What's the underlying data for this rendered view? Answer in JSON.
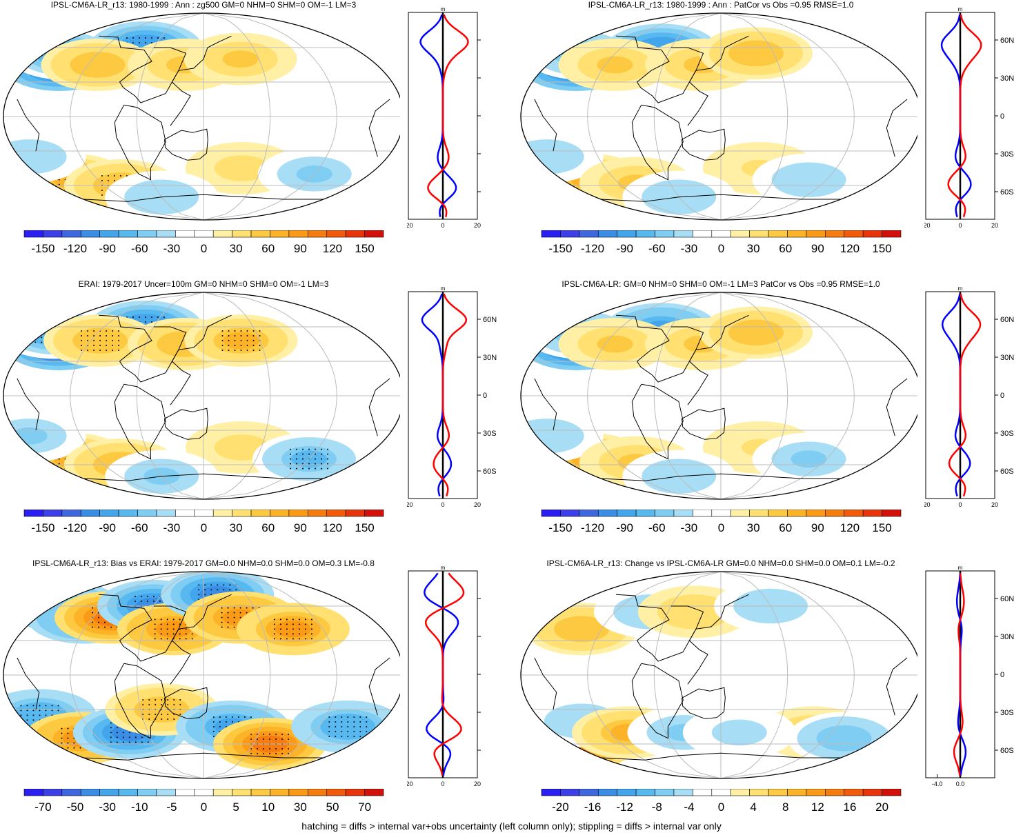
{
  "footer": "hatching = diffs > internal var+obs uncertainty (left column only); stippling = diffs > internal var only",
  "colors": {
    "colormap": [
      "#2b1ef5",
      "#3d3fe8",
      "#3f68e0",
      "#3a8ee6",
      "#43a6ec",
      "#58b9f0",
      "#7fcdf3",
      "#a7def6",
      "#ffffff",
      "#ffffff",
      "#fff0a6",
      "#ffe070",
      "#fdc940",
      "#fdb327",
      "#fb9a17",
      "#f77c10",
      "#f25a0c",
      "#e8340a",
      "#d4100a"
    ],
    "profile_model": "#ff0000",
    "profile_obs": "#0000ff",
    "profile_center": "#000000"
  },
  "chart_data": [
    {
      "type": "heatmap",
      "title": "IPSL-CM6A-LR_r13: 1980-1999 : Ann : zg500 GM=0 NHM=0 SHM=0 OM=-1 LM=3",
      "colorbar_ticks": [
        "-150",
        "-120",
        "-90",
        "-60",
        "-30",
        "0",
        "30",
        "60",
        "90",
        "120",
        "150"
      ],
      "profile": {
        "units": "m",
        "xticks": [
          "-20",
          "0",
          "20"
        ],
        "yticks": [
          "60N",
          "30N",
          "0",
          "30S",
          "60S"
        ],
        "show_yticks": false,
        "xlim": [
          -20,
          20
        ]
      },
      "stipple": true,
      "anomalies": [
        {
          "lon": -150,
          "lat": 45,
          "amp": -130
        },
        {
          "lon": -160,
          "lat": 55,
          "amp": -70
        },
        {
          "lon": -70,
          "lat": 60,
          "amp": -90
        },
        {
          "lon": -110,
          "lat": 45,
          "amp": 50
        },
        {
          "lon": -20,
          "lat": 45,
          "amp": 45
        },
        {
          "lon": 40,
          "lat": 50,
          "amp": 45
        },
        {
          "lon": -150,
          "lat": -55,
          "amp": 65
        },
        {
          "lon": -170,
          "lat": -35,
          "amp": -40
        },
        {
          "lon": -100,
          "lat": -60,
          "amp": 55
        },
        {
          "lon": 40,
          "lat": -45,
          "amp": 30
        },
        {
          "lon": 120,
          "lat": -50,
          "amp": -45
        },
        {
          "lon": -60,
          "lat": -70,
          "amp": -40
        }
      ]
    },
    {
      "type": "heatmap",
      "title": "IPSL-CM6A-LR_r13: 1980-1999 : Ann : PatCor vs Obs =0.95 RMSE=1.0",
      "colorbar_ticks": [
        "-150",
        "-120",
        "-90",
        "-60",
        "-30",
        "0",
        "30",
        "60",
        "90",
        "120",
        "150"
      ],
      "profile": {
        "units": "m",
        "xticks": [
          "-20",
          "0",
          "20"
        ],
        "yticks": [
          "60N",
          "30N",
          "0",
          "30S",
          "60S"
        ],
        "show_yticks": true,
        "xlim": [
          -20,
          20
        ]
      },
      "stipple": false,
      "anomalies": [
        {
          "lon": -150,
          "lat": 45,
          "amp": -125
        },
        {
          "lon": -160,
          "lat": 55,
          "amp": -60
        },
        {
          "lon": -70,
          "lat": 58,
          "amp": -90
        },
        {
          "lon": -110,
          "lat": 45,
          "amp": 45
        },
        {
          "lon": -20,
          "lat": 45,
          "amp": 45
        },
        {
          "lon": 40,
          "lat": 55,
          "amp": 50
        },
        {
          "lon": -150,
          "lat": -55,
          "amp": 60
        },
        {
          "lon": -170,
          "lat": -35,
          "amp": -40
        },
        {
          "lon": -100,
          "lat": -58,
          "amp": 45
        },
        {
          "lon": 40,
          "lat": -45,
          "amp": 25
        },
        {
          "lon": 100,
          "lat": -55,
          "amp": -40
        },
        {
          "lon": -60,
          "lat": -70,
          "amp": -40
        }
      ]
    },
    {
      "type": "heatmap",
      "title": "ERAI: 1979-2017 Uncer=100m GM=0 NHM=0 SHM=0 OM=-1 LM=3",
      "colorbar_ticks": [
        "-150",
        "-120",
        "-90",
        "-60",
        "-30",
        "0",
        "30",
        "60",
        "90",
        "120",
        "150"
      ],
      "profile": {
        "units": "m",
        "xticks": [
          "-20",
          "0",
          "20"
        ],
        "yticks": [
          "60N",
          "30N",
          "0",
          "30S",
          "60S"
        ],
        "show_yticks": true,
        "xlim": [
          -20,
          20
        ]
      },
      "stipple": true,
      "anomalies": [
        {
          "lon": -150,
          "lat": 45,
          "amp": -140
        },
        {
          "lon": -170,
          "lat": 55,
          "amp": -70
        },
        {
          "lon": -70,
          "lat": 60,
          "amp": -90
        },
        {
          "lon": -110,
          "lat": 48,
          "amp": 55
        },
        {
          "lon": -20,
          "lat": 45,
          "amp": 50
        },
        {
          "lon": 40,
          "lat": 48,
          "amp": 60
        },
        {
          "lon": -150,
          "lat": -55,
          "amp": 65
        },
        {
          "lon": -170,
          "lat": -35,
          "amp": -45
        },
        {
          "lon": -100,
          "lat": -60,
          "amp": 50
        },
        {
          "lon": 40,
          "lat": -45,
          "amp": 30
        },
        {
          "lon": 120,
          "lat": -55,
          "amp": -60
        },
        {
          "lon": -60,
          "lat": -70,
          "amp": -45
        }
      ]
    },
    {
      "type": "heatmap",
      "title": "IPSL-CM6A-LR: GM=0 NHM=0 SHM=0 OM=-1 LM=3 PatCor vs Obs =0.95 RMSE=1.0",
      "colorbar_ticks": [
        "-150",
        "-120",
        "-90",
        "-60",
        "-30",
        "0",
        "30",
        "60",
        "90",
        "120",
        "150"
      ],
      "profile": {
        "units": "m",
        "xticks": [
          "-20",
          "0",
          "20"
        ],
        "yticks": [
          "60N",
          "30N",
          "0",
          "30S",
          "60S"
        ],
        "show_yticks": true,
        "xlim": [
          -20,
          20
        ]
      },
      "stipple": false,
      "anomalies": [
        {
          "lon": -150,
          "lat": 45,
          "amp": -125
        },
        {
          "lon": -160,
          "lat": 55,
          "amp": -60
        },
        {
          "lon": -70,
          "lat": 58,
          "amp": -85
        },
        {
          "lon": -110,
          "lat": 45,
          "amp": 45
        },
        {
          "lon": -20,
          "lat": 45,
          "amp": 45
        },
        {
          "lon": 40,
          "lat": 55,
          "amp": 50
        },
        {
          "lon": -150,
          "lat": -55,
          "amp": 60
        },
        {
          "lon": -170,
          "lat": -35,
          "amp": -40
        },
        {
          "lon": -100,
          "lat": -58,
          "amp": 45
        },
        {
          "lon": 40,
          "lat": -45,
          "amp": 25
        },
        {
          "lon": 100,
          "lat": -55,
          "amp": -45
        },
        {
          "lon": -60,
          "lat": -70,
          "amp": -40
        }
      ]
    },
    {
      "type": "heatmap",
      "title": "IPSL-CM6A-LR_r13: Bias vs ERAI: 1979-2017 GM=0.0 NHM=0.0 SHM=0.0 OM=0.3 LM=-0.8",
      "colorbar_ticks": [
        "-70",
        "-50",
        "-30",
        "-10",
        "-5",
        "0",
        "5",
        "10",
        "30",
        "50",
        "70"
      ],
      "profile": {
        "units": "m",
        "xticks": [
          "-20",
          "0",
          "20"
        ],
        "yticks": [
          "60N",
          "30N",
          "0",
          "30S",
          "60S"
        ],
        "show_yticks": false,
        "xlim": [
          -20,
          20
        ]
      },
      "stipple": true,
      "anomalies": [
        {
          "lon": -170,
          "lat": 60,
          "amp": -50
        },
        {
          "lon": -130,
          "lat": 50,
          "amp": -40
        },
        {
          "lon": -100,
          "lat": 50,
          "amp": 45
        },
        {
          "lon": -60,
          "lat": 60,
          "amp": -45
        },
        {
          "lon": -30,
          "lat": 40,
          "amp": 40
        },
        {
          "lon": 20,
          "lat": 70,
          "amp": -50
        },
        {
          "lon": 40,
          "lat": 50,
          "amp": 40
        },
        {
          "lon": 90,
          "lat": 40,
          "amp": 35
        },
        {
          "lon": -160,
          "lat": -35,
          "amp": -35
        },
        {
          "lon": -140,
          "lat": -55,
          "amp": 40
        },
        {
          "lon": -80,
          "lat": -50,
          "amp": -45
        },
        {
          "lon": -40,
          "lat": -30,
          "amp": 25
        },
        {
          "lon": 30,
          "lat": -45,
          "amp": -40
        },
        {
          "lon": 80,
          "lat": -60,
          "amp": 45
        },
        {
          "lon": 150,
          "lat": -45,
          "amp": -35
        }
      ]
    },
    {
      "type": "heatmap",
      "title": "IPSL-CM6A-LR_r13: Change vs IPSL-CM6A-LR GM=0.0 NHM=0.0 SHM=0.0 OM=0.1 LM=-0.2",
      "colorbar_ticks": [
        "-20",
        "-16",
        "-12",
        "-8",
        "-4",
        "0",
        "4",
        "8",
        "12",
        "16",
        "20"
      ],
      "profile": {
        "units": "m",
        "xticks": [
          "-4.0",
          "0.0"
        ],
        "yticks": [
          "60N",
          "30N",
          "0",
          "30S",
          "60S"
        ],
        "show_yticks": true,
        "xlim": [
          -6,
          6
        ]
      },
      "stipple": false,
      "anomalies": [
        {
          "lon": -170,
          "lat": 45,
          "amp": -6
        },
        {
          "lon": -140,
          "lat": 40,
          "amp": 7
        },
        {
          "lon": -80,
          "lat": 55,
          "amp": -5
        },
        {
          "lon": -30,
          "lat": 55,
          "amp": 5
        },
        {
          "lon": 60,
          "lat": 60,
          "amp": -5
        },
        {
          "lon": 100,
          "lat": -50,
          "amp": 6
        },
        {
          "lon": 140,
          "lat": -55,
          "amp": -7
        },
        {
          "lon": -170,
          "lat": -60,
          "amp": 14
        },
        {
          "lon": -140,
          "lat": -40,
          "amp": -5
        },
        {
          "lon": -100,
          "lat": -50,
          "amp": 8
        },
        {
          "lon": -40,
          "lat": -50,
          "amp": -6
        },
        {
          "lon": 20,
          "lat": -50,
          "amp": -4
        }
      ]
    }
  ]
}
